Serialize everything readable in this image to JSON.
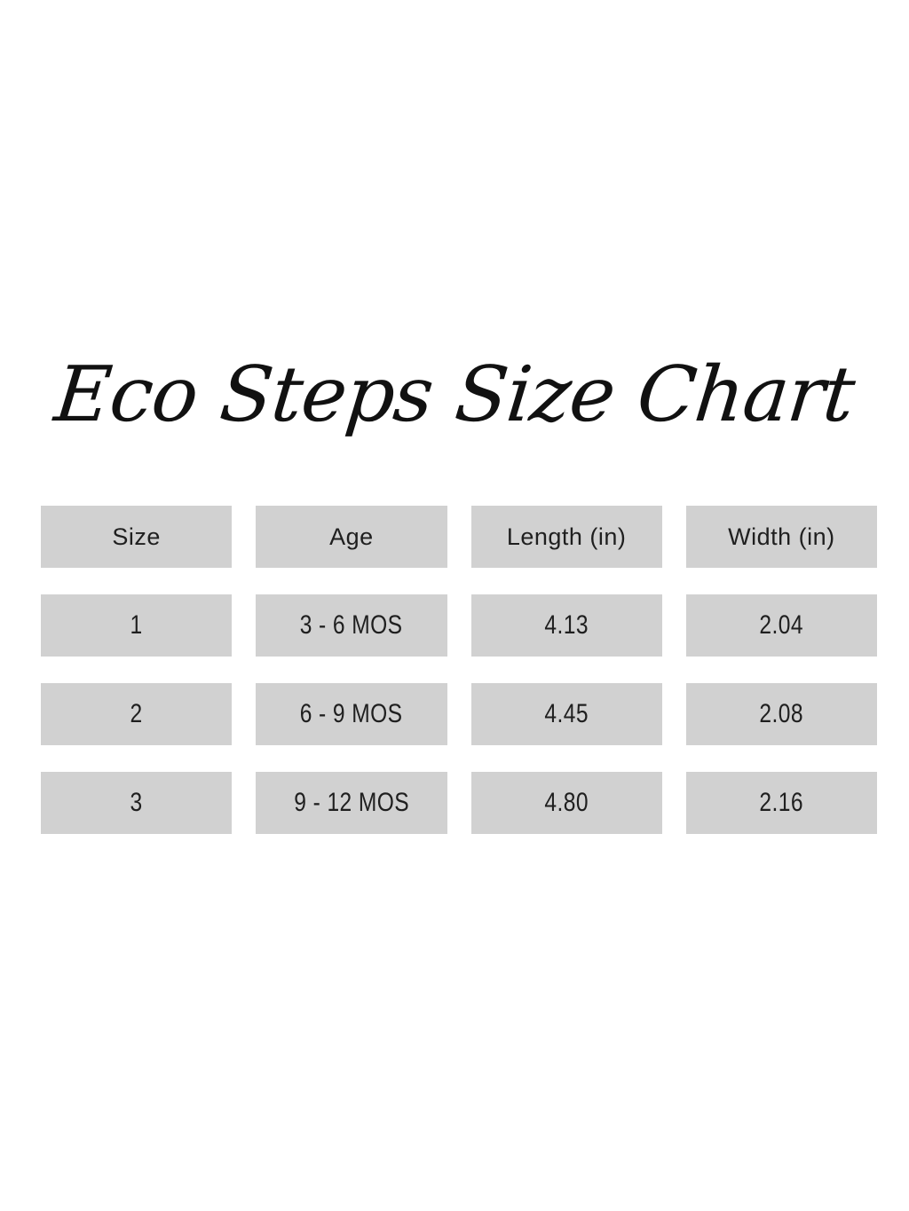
{
  "title": "Eco Steps Size Chart",
  "table": {
    "headers": [
      "Size",
      "Age",
      "Length (in)",
      "Width (in)"
    ],
    "rows": [
      [
        "1",
        "3 - 6 MOS",
        "4.13",
        "2.04"
      ],
      [
        "2",
        "6 - 9 MOS",
        "4.45",
        "2.08"
      ],
      [
        "3",
        "9 - 12 MOS",
        "4.80",
        "2.16"
      ]
    ]
  },
  "colors": {
    "background": "#ffffff",
    "cell_background": "#d1d1d1",
    "text": "#1f1f1f"
  },
  "chart_data": {
    "type": "table",
    "title": "Eco Steps Size Chart",
    "columns": [
      "Size",
      "Age",
      "Length (in)",
      "Width (in)"
    ],
    "rows": [
      {
        "size": "1",
        "age": "3 - 6 MOS",
        "length_in": 4.13,
        "width_in": 2.04
      },
      {
        "size": "2",
        "age": "6 - 9 MOS",
        "length_in": 4.45,
        "width_in": 2.08
      },
      {
        "size": "3",
        "age": "9 - 12 MOS",
        "length_in": 4.8,
        "width_in": 2.16
      }
    ],
    "layout": "4-column grid of grey cells on white background, script title above"
  }
}
